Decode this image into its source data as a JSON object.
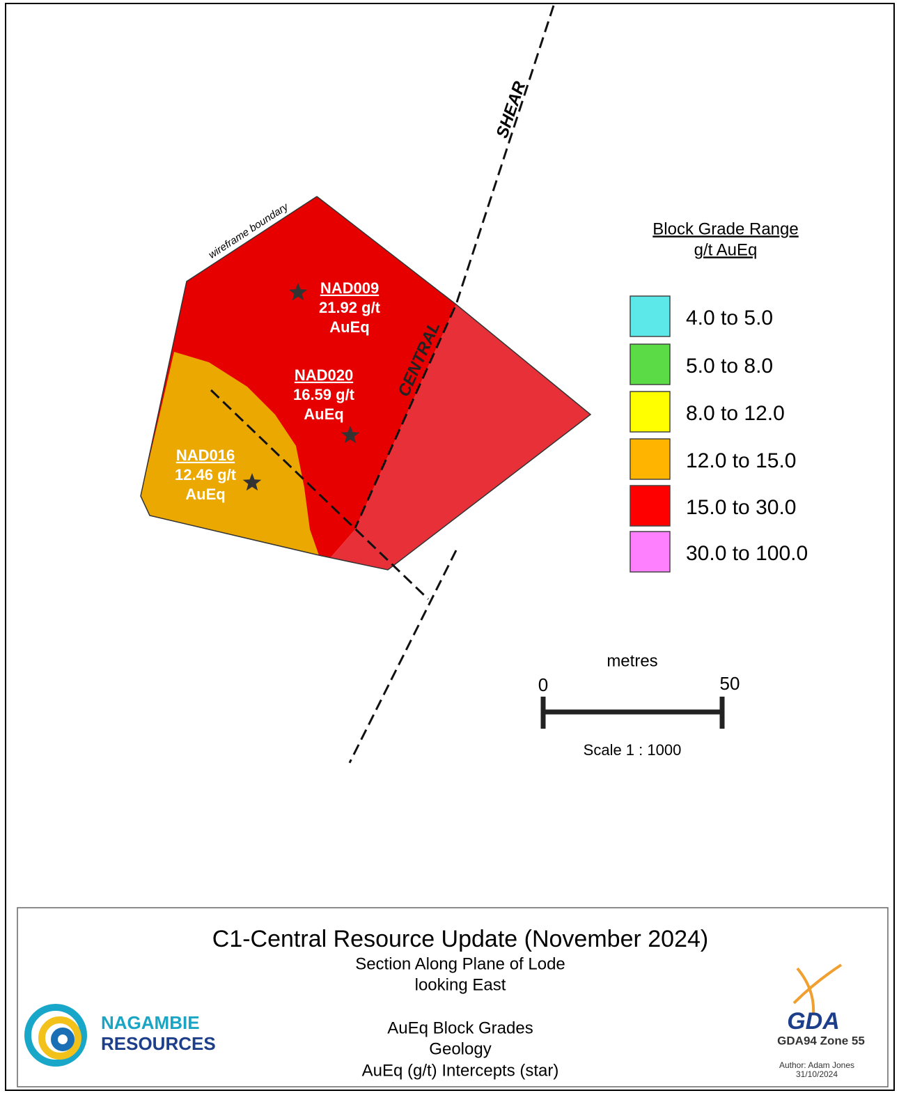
{
  "map": {
    "labels": {
      "shear": "SHEAR",
      "central": "CENTRAL",
      "boundary": "wireframe boundary"
    },
    "intercepts": [
      {
        "hole": "NAD009",
        "grade": "21.92 g/t",
        "unit": "AuEq"
      },
      {
        "hole": "NAD020",
        "grade": "16.59 g/t",
        "unit": "AuEq"
      },
      {
        "hole": "NAD016",
        "grade": "12.46 g/t",
        "unit": "AuEq"
      }
    ],
    "legend": {
      "title": "Block Grade Range",
      "subtitle": "g/t AuEq",
      "items": [
        {
          "label": "4.0 to 5.0",
          "color": "#5ce8e8"
        },
        {
          "label": "5.0 to 8.0",
          "color": "#5bdc46"
        },
        {
          "label": "8.0 to 12.0",
          "color": "#ffff00"
        },
        {
          "label": "12.0 to 15.0",
          "color": "#ffb400"
        },
        {
          "label": "15.0 to 30.0",
          "color": "#ff0000"
        },
        {
          "label": "30.0 to 100.0",
          "color": "#ff80ff"
        }
      ]
    },
    "scale": {
      "unit": "metres",
      "start": "0",
      "end": "50",
      "text": "Scale 1 : 1000"
    }
  },
  "footer": {
    "title": "C1-Central Resource Update (November 2024)",
    "subtitle": [
      "Section Along Plane of Lode",
      "looking East"
    ],
    "notes": [
      "AuEq Block Grades",
      "Geology",
      "AuEq (g/t) Intercepts (star)"
    ],
    "company": [
      "NAGAMBIE",
      "RESOURCES"
    ],
    "gda": {
      "logo": "GDA",
      "zone": "GDA94 Zone 55",
      "author": "Author: Adam Jones",
      "date": "31/10/2024"
    }
  }
}
